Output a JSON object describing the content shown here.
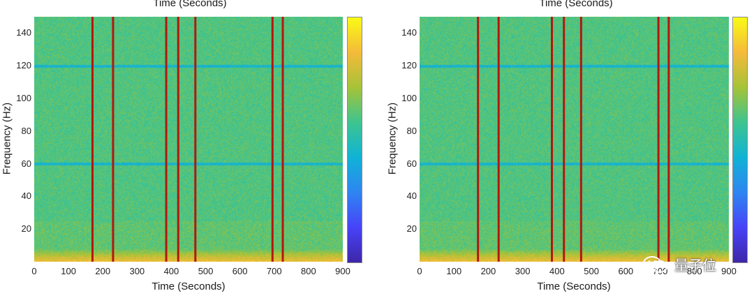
{
  "chart_data": [
    {
      "type": "heatmap",
      "title": "Time (Seconds)",
      "xlabel": "Time (Seconds)",
      "ylabel": "Frequency (Hz)",
      "xlim": [
        0,
        900
      ],
      "ylim": [
        0,
        150
      ],
      "xticks": [
        "0",
        "100",
        "200",
        "300",
        "400",
        "500",
        "600",
        "700",
        "800",
        "900"
      ],
      "yticks": [
        "20",
        "40",
        "60",
        "80",
        "100",
        "120",
        "140"
      ],
      "noise_lines_hz": [
        60,
        120
      ],
      "event_markers_seconds": [
        170,
        230,
        385,
        420,
        470,
        695,
        725
      ],
      "colormap": "parula",
      "colorbar": true
    },
    {
      "type": "heatmap",
      "title": "Time (Seconds)",
      "xlabel": "Time (Seconds)",
      "ylabel": "Frequency (Hz)",
      "xlim": [
        0,
        900
      ],
      "ylim": [
        0,
        150
      ],
      "xticks": [
        "0",
        "100",
        "200",
        "300",
        "400",
        "500",
        "600",
        "700",
        "800",
        "900"
      ],
      "yticks": [
        "20",
        "40",
        "60",
        "80",
        "100",
        "120",
        "140"
      ],
      "noise_lines_hz": [
        60,
        120
      ],
      "event_markers_seconds": [
        170,
        230,
        385,
        420,
        470,
        695,
        725
      ],
      "colormap": "parula",
      "colorbar": true
    }
  ],
  "watermark": {
    "brand": "量子位"
  },
  "colors": {
    "marker": "#b3170f",
    "noise_line": "#1a86c9"
  }
}
